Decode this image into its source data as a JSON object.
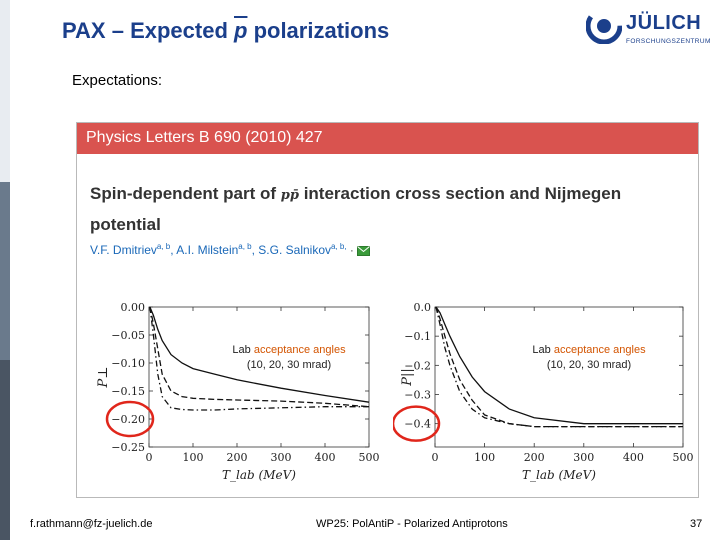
{
  "slide": {
    "title_prefix": "PAX – Expected ",
    "title_symbol": "p",
    "title_suffix": " polarizations",
    "expectations_label": "Expectations:",
    "logo_text": "JÜLICH",
    "logo_sub": "FORSCHUNGSZENTRUM",
    "footer_left": "f.rathmann@fz-juelich.de",
    "footer_center": "WP25: PolAntiP - Polarized Antiprotons",
    "footer_right": "37",
    "colors": {
      "title": "#1b3f8b",
      "header": "#d9534f",
      "circle": "#e0261b"
    }
  },
  "paper": {
    "journal": "Physics Letters B 690 (2010) 427",
    "title_part1": "Spin-dependent part of",
    "title_symbol": "pp̄",
    "title_part2": "interaction cross section and Nijmegen",
    "title_line2": "potential",
    "authors": [
      {
        "name": "V.F. Dmitriev",
        "aff": "a, b"
      },
      {
        "name": "A.I. Milstein",
        "aff": "a, b"
      },
      {
        "name": "S.G. Salnikov",
        "aff": "a, b,"
      }
    ],
    "author_icon": "envelope-icon"
  },
  "chart_data": [
    {
      "type": "line",
      "ylabel": "P⊥",
      "xlabel": "T_lab (MeV)",
      "xlim": [
        0,
        500
      ],
      "ylim": [
        -0.25,
        0.0
      ],
      "xticks": [
        "0",
        "100",
        "200",
        "300",
        "400",
        "500"
      ],
      "yticks": [
        "0.00",
        "−0.05",
        "−0.10",
        "−0.15",
        "−0.20",
        "−0.25"
      ],
      "annotation_line1_a": "Lab ",
      "annotation_line1_b": "acceptance angles",
      "annotation_line2": "(10, 20, 30 mrad)",
      "highlighted_tick": "−0.20",
      "series": [
        {
          "style": "solid",
          "x": [
            2,
            10,
            20,
            30,
            50,
            75,
            100,
            150,
            200,
            300,
            400,
            500
          ],
          "y": [
            0.0,
            -0.015,
            -0.04,
            -0.06,
            -0.085,
            -0.1,
            -0.11,
            -0.12,
            -0.13,
            -0.145,
            -0.158,
            -0.17
          ]
        },
        {
          "style": "dashed",
          "x": [
            2,
            10,
            20,
            30,
            50,
            75,
            100,
            150,
            200,
            300,
            400,
            500
          ],
          "y": [
            0.0,
            -0.03,
            -0.075,
            -0.12,
            -0.15,
            -0.16,
            -0.163,
            -0.165,
            -0.166,
            -0.168,
            -0.172,
            -0.178
          ]
        },
        {
          "style": "dashdot",
          "x": [
            2,
            10,
            20,
            30,
            50,
            75,
            100,
            150,
            200,
            300,
            400,
            500
          ],
          "y": [
            0.0,
            -0.05,
            -0.12,
            -0.16,
            -0.18,
            -0.183,
            -0.184,
            -0.184,
            -0.182,
            -0.18,
            -0.178,
            -0.178
          ]
        }
      ]
    },
    {
      "type": "line",
      "ylabel": "P||",
      "xlabel": "T_lab (MeV)",
      "xlim": [
        0,
        500
      ],
      "ylim": [
        -0.48,
        0.0
      ],
      "xticks": [
        "0",
        "100",
        "200",
        "300",
        "400",
        "500"
      ],
      "yticks": [
        "0.0",
        "−0.1",
        "−0.2",
        "−0.3",
        "−0.4"
      ],
      "annotation_line1_a": "Lab ",
      "annotation_line1_b": "acceptance angles",
      "annotation_line2": "(10, 20, 30 mrad)",
      "highlighted_tick": "−0.4",
      "series": [
        {
          "style": "solid",
          "x": [
            2,
            10,
            20,
            30,
            50,
            75,
            100,
            150,
            200,
            300,
            400,
            500
          ],
          "y": [
            0.0,
            -0.02,
            -0.06,
            -0.1,
            -0.17,
            -0.24,
            -0.29,
            -0.35,
            -0.38,
            -0.4,
            -0.4,
            -0.4
          ]
        },
        {
          "style": "dashed",
          "x": [
            2,
            10,
            20,
            30,
            50,
            75,
            100,
            150,
            200,
            300,
            400,
            500
          ],
          "y": [
            0.0,
            -0.04,
            -0.1,
            -0.16,
            -0.25,
            -0.32,
            -0.37,
            -0.4,
            -0.41,
            -0.41,
            -0.41,
            -0.41
          ]
        },
        {
          "style": "dashdot",
          "x": [
            2,
            10,
            20,
            30,
            50,
            75,
            100,
            150,
            200,
            300,
            400,
            500
          ],
          "y": [
            0.0,
            -0.06,
            -0.14,
            -0.2,
            -0.29,
            -0.35,
            -0.38,
            -0.4,
            -0.41,
            -0.41,
            -0.41,
            -0.41
          ]
        }
      ]
    }
  ]
}
